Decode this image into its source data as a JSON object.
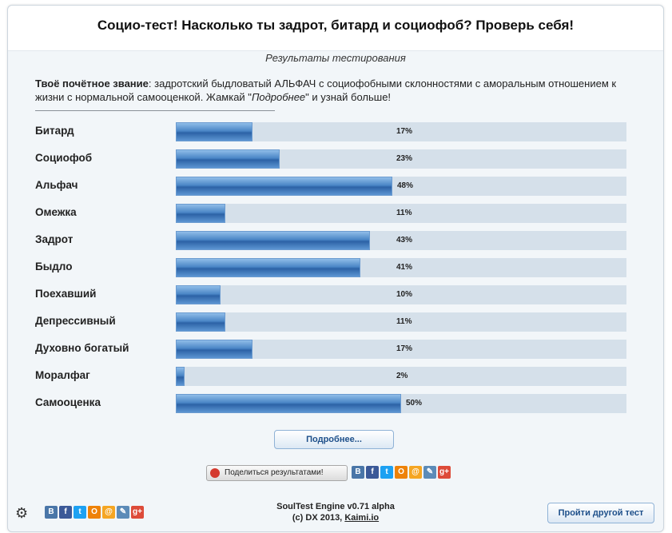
{
  "title": "Социо-тест! Насколько ты задрот, битард и социофоб? Проверь себя!",
  "subtitle": "Результаты тестирования",
  "verdict": {
    "label": "Твоё почётное звание",
    "text_before": ": задротский быдловатый АЛЬФАЧ с социофобными склонностями с аморальным отношением к жизни с нормальной самооценкой. Жамкай \"",
    "link_word": "Подробнее",
    "text_after": "\" и узнай больше!"
  },
  "results": [
    {
      "label": "Битард",
      "percent": 17,
      "percent_label": "17%"
    },
    {
      "label": "Социофоб",
      "percent": 23,
      "percent_label": "23%"
    },
    {
      "label": "Альфач",
      "percent": 48,
      "percent_label": "48%"
    },
    {
      "label": "Омежка",
      "percent": 11,
      "percent_label": "11%"
    },
    {
      "label": "Задрот",
      "percent": 43,
      "percent_label": "43%"
    },
    {
      "label": "Быдло",
      "percent": 41,
      "percent_label": "41%"
    },
    {
      "label": "Поехавший",
      "percent": 10,
      "percent_label": "10%"
    },
    {
      "label": "Депрессивный",
      "percent": 11,
      "percent_label": "11%"
    },
    {
      "label": "Духовно богатый",
      "percent": 17,
      "percent_label": "17%"
    },
    {
      "label": "Моралфаг",
      "percent": 2,
      "percent_label": "2%"
    },
    {
      "label": "Самооценка",
      "percent": 50,
      "percent_label": "50%"
    }
  ],
  "more_button": "Подробнее...",
  "share_button": "Поделиться результатами!",
  "footer": {
    "engine": "SoulTest Engine v0.71 alpha",
    "copyright": "(c) DX 2013,",
    "link": "Kaimi.io"
  },
  "retry_button": "Пройти другой тест",
  "social_icons": [
    {
      "name": "vkontakte-icon",
      "glyph": "В",
      "color": "#4a76a8"
    },
    {
      "name": "facebook-icon",
      "glyph": "f",
      "color": "#3b5998"
    },
    {
      "name": "twitter-icon",
      "glyph": "t",
      "color": "#1da1f2"
    },
    {
      "name": "odnoklassniki-icon",
      "glyph": "О",
      "color": "#ee8208"
    },
    {
      "name": "mailru-icon",
      "glyph": "@",
      "color": "#f5a623"
    },
    {
      "name": "livejournal-icon",
      "glyph": "✎",
      "color": "#5c8bb8"
    },
    {
      "name": "googleplus-icon",
      "glyph": "g+",
      "color": "#dd4b39"
    }
  ]
}
